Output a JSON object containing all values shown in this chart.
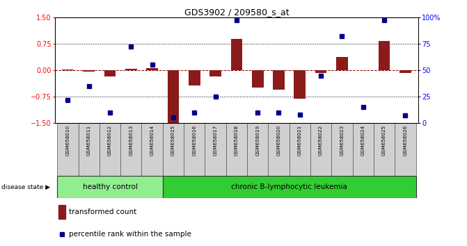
{
  "title": "GDS3902 / 209580_s_at",
  "samples": [
    "GSM658010",
    "GSM658011",
    "GSM658012",
    "GSM658013",
    "GSM658014",
    "GSM658015",
    "GSM658016",
    "GSM658017",
    "GSM658018",
    "GSM658019",
    "GSM658020",
    "GSM658021",
    "GSM658022",
    "GSM658023",
    "GSM658024",
    "GSM658025",
    "GSM658026"
  ],
  "transformed_count": [
    0.02,
    -0.05,
    -0.18,
    0.04,
    0.05,
    -1.52,
    -0.43,
    -0.18,
    0.88,
    -0.5,
    -0.55,
    -0.82,
    -0.08,
    0.38,
    0.0,
    0.82,
    -0.08
  ],
  "percentile_rank": [
    22,
    35,
    10,
    72,
    55,
    5,
    10,
    25,
    97,
    10,
    10,
    8,
    45,
    82,
    15,
    97,
    7
  ],
  "healthy_count": 5,
  "bar_color": "#8B1A1A",
  "dot_color": "#00008B",
  "healthy_color": "#90EE90",
  "leukemia_color": "#32CD32",
  "ylim_left": [
    -1.5,
    1.5
  ],
  "ylim_right": [
    0,
    100
  ],
  "yticks_left": [
    -1.5,
    -0.75,
    0,
    0.75,
    1.5
  ],
  "yticks_right": [
    0,
    25,
    50,
    75,
    100
  ],
  "hlines_dotted": [
    -0.75,
    0.75
  ],
  "hline_dashed_color": "darkred",
  "xlabel_healthy": "healthy control",
  "xlabel_leukemia": "chronic B-lymphocytic leukemia",
  "legend_bar": "transformed count",
  "legend_dot": "percentile rank within the sample",
  "disease_label": "disease state"
}
